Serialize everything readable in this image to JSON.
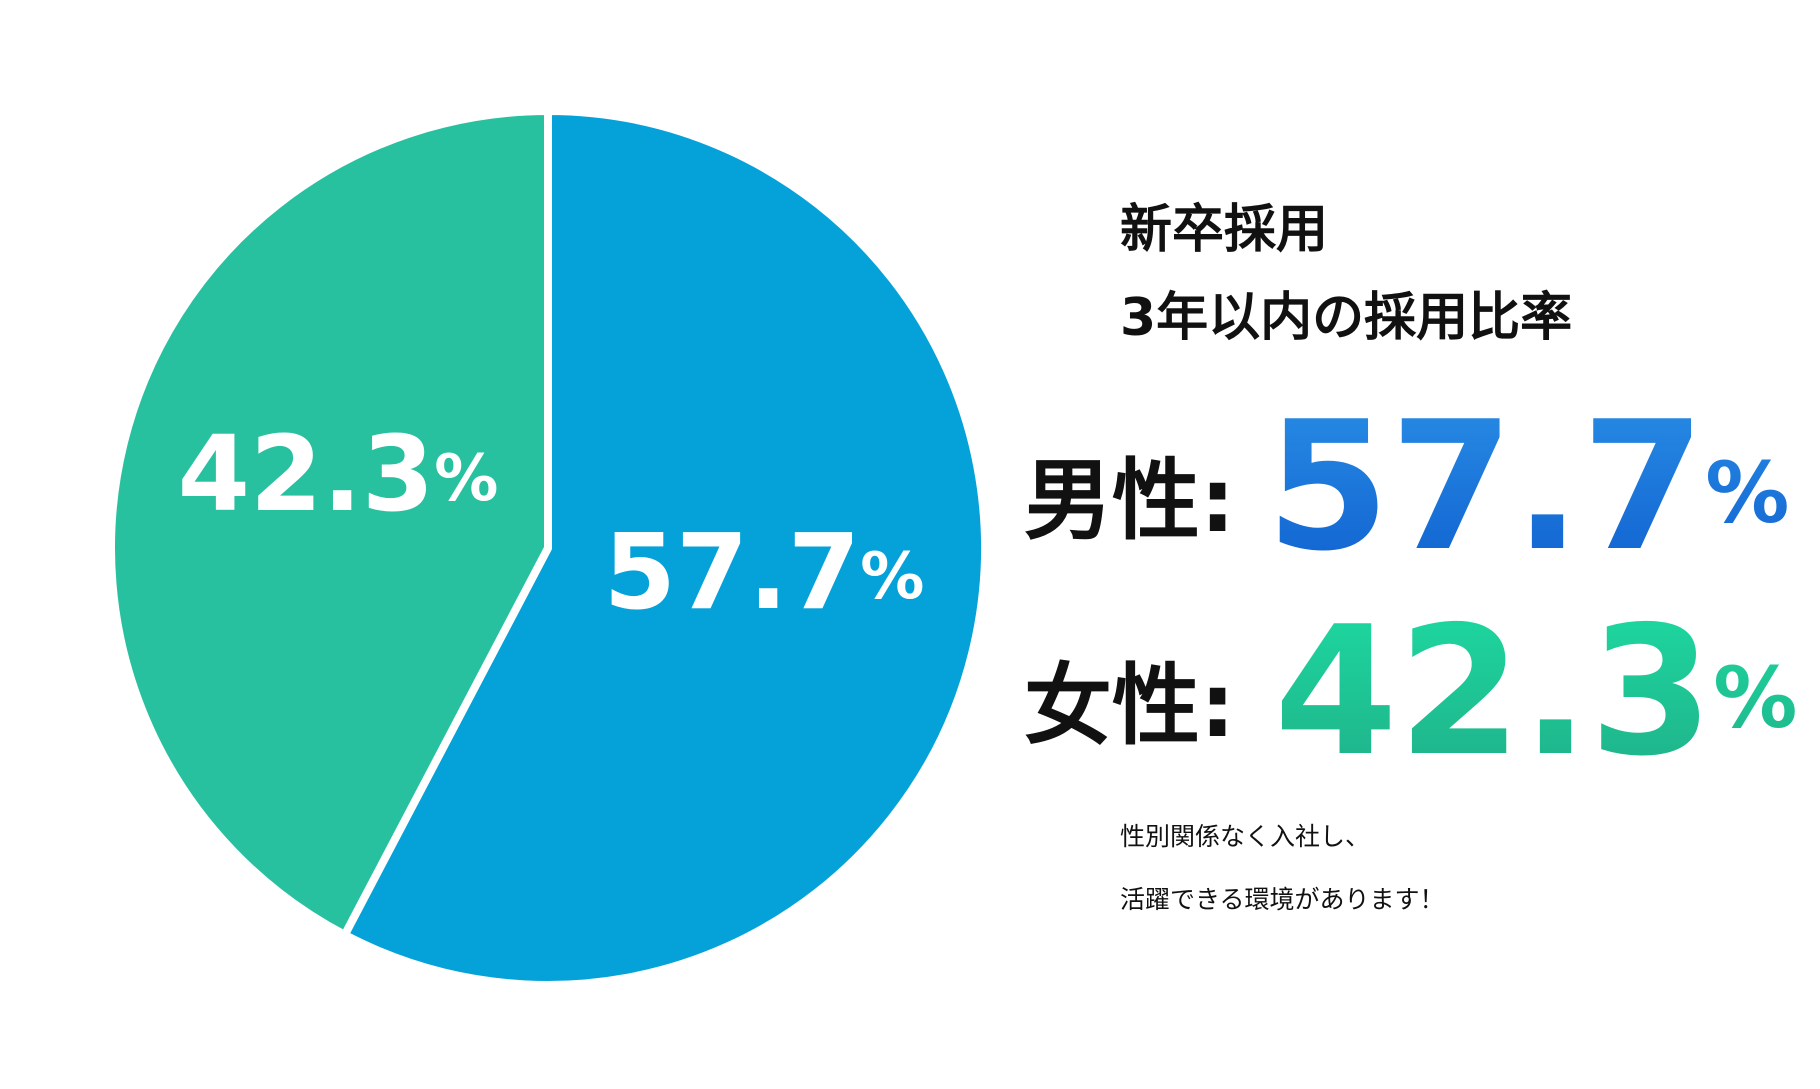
{
  "chart_data": {
    "type": "pie",
    "title": "新卒採用",
    "subtitle": "3年以内の採用比率",
    "categories": [
      "男性:",
      "女性:"
    ],
    "values": [
      57.7,
      42.3
    ],
    "value_labels": [
      "57.7%",
      "42.3%"
    ],
    "colors": [
      "#05a2da",
      "#28c1a0"
    ],
    "note": [
      "性別関係なく入社し、",
      "活躍できる環境があります！"
    ]
  }
}
